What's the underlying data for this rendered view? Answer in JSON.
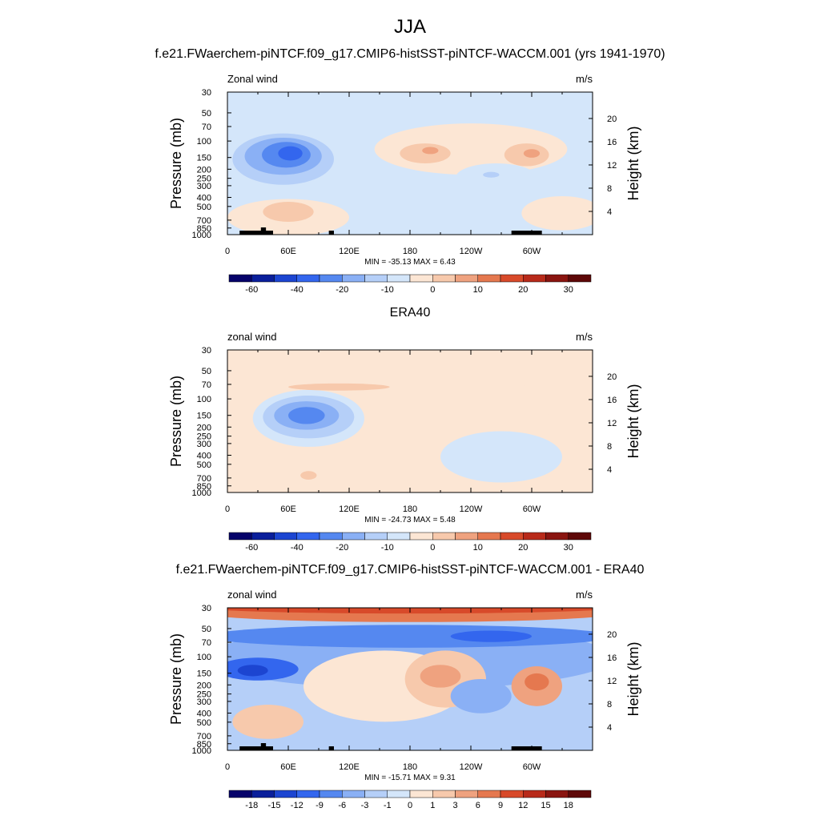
{
  "page": {
    "title": "JJA"
  },
  "chart_data": [
    {
      "type": "heatmap",
      "title": "f.e21.FWaerchem-piNTCF.f09_g17.CMIP6-histSST-piNTCF-WACCM.001 (yrs 1941-1970)",
      "left_label": "Zonal wind",
      "right_label": "m/s",
      "xlabel": "",
      "ylabel": "Pressure (mb)",
      "ylabel_right": "Height (km)",
      "x_ticks": [
        "0",
        "60E",
        "120E",
        "180",
        "120W",
        "60W"
      ],
      "y_ticks": [
        "30",
        "50",
        "70",
        "100",
        "150",
        "200",
        "250",
        "300",
        "400",
        "500",
        "700",
        "850",
        "1000"
      ],
      "y_right_ticks": [
        "20",
        "16",
        "12",
        "8",
        "4"
      ],
      "stats": "MIN = -35.13  MAX =   6.43",
      "min": -35.13,
      "max": 6.43,
      "colorbar_labels": [
        "-60",
        "-40",
        "-20",
        "-10",
        "0",
        "10",
        "20",
        "30"
      ],
      "colorbar_colors": [
        "#06036a",
        "#0a1f9b",
        "#1c45d1",
        "#3366ee",
        "#5588f0",
        "#8ab0f5",
        "#b5cff8",
        "#d4e6fa",
        "#fce6d4",
        "#f7c9ac",
        "#efa27f",
        "#e5784f",
        "#d84a2a",
        "#b82a1a",
        "#8a1510",
        "#5e0808"
      ],
      "features": [
        {
          "lon": 55,
          "p": 155,
          "value": -35,
          "note": "subtropical easterly jet core"
        },
        {
          "lon": 205,
          "p": 150,
          "value": 6,
          "note": "westerly maximum"
        },
        {
          "lon": 285,
          "p": 150,
          "value": 6,
          "note": "westerly maximum"
        }
      ]
    },
    {
      "type": "heatmap",
      "title": "ERA40",
      "left_label": "zonal wind",
      "right_label": "m/s",
      "xlabel": "",
      "ylabel": "Pressure (mb)",
      "ylabel_right": "Height (km)",
      "x_ticks": [
        "0",
        "60E",
        "120E",
        "180",
        "120W",
        "60W"
      ],
      "y_ticks": [
        "30",
        "50",
        "70",
        "100",
        "150",
        "200",
        "250",
        "300",
        "400",
        "500",
        "700",
        "850",
        "1000"
      ],
      "y_right_ticks": [
        "20",
        "16",
        "12",
        "8",
        "4"
      ],
      "stats": "MIN = -24.73  MAX =   5.48",
      "min": -24.73,
      "max": 5.48,
      "colorbar_labels": [
        "-60",
        "-40",
        "-20",
        "-10",
        "0",
        "10",
        "20",
        "30"
      ],
      "colorbar_colors": [
        "#06036a",
        "#0a1f9b",
        "#1c45d1",
        "#3366ee",
        "#5588f0",
        "#8ab0f5",
        "#b5cff8",
        "#d4e6fa",
        "#fce6d4",
        "#f7c9ac",
        "#efa27f",
        "#e5784f",
        "#d84a2a",
        "#b82a1a",
        "#8a1510",
        "#5e0808"
      ],
      "features": [
        {
          "lon": 80,
          "p": 150,
          "value": -25,
          "note": "subtropical easterly jet core"
        },
        {
          "lon": 240,
          "p": 130,
          "value": 5,
          "note": "broad westerly region"
        }
      ]
    },
    {
      "type": "heatmap",
      "title": "f.e21.FWaerchem-piNTCF.f09_g17.CMIP6-histSST-piNTCF-WACCM.001 - ERA40",
      "left_label": "zonal wind",
      "right_label": "m/s",
      "xlabel": "",
      "ylabel": "Pressure (mb)",
      "ylabel_right": "Height (km)",
      "x_ticks": [
        "0",
        "60E",
        "120E",
        "180",
        "120W",
        "60W"
      ],
      "y_ticks": [
        "30",
        "50",
        "70",
        "100",
        "150",
        "200",
        "250",
        "300",
        "400",
        "500",
        "700",
        "850",
        "1000"
      ],
      "y_right_ticks": [
        "20",
        "16",
        "12",
        "8",
        "4"
      ],
      "stats": "MIN = -15.71  MAX =   9.31",
      "min": -15.71,
      "max": 9.31,
      "colorbar_labels": [
        "-18",
        "-15",
        "-12",
        "-9",
        "-6",
        "-3",
        "-1",
        "0",
        "1",
        "3",
        "6",
        "9",
        "12",
        "15",
        "18"
      ],
      "colorbar_colors": [
        "#06036a",
        "#0a1f9b",
        "#1c45d1",
        "#3366ee",
        "#5588f0",
        "#8ab0f5",
        "#b5cff8",
        "#d4e6fa",
        "#fce6d4",
        "#f7c9ac",
        "#efa27f",
        "#e5784f",
        "#d84a2a",
        "#b82a1a",
        "#8a1510",
        "#5e0808"
      ],
      "features": [
        {
          "lon": 25,
          "p": 160,
          "value": -15,
          "note": "negative difference core"
        },
        {
          "lon": 260,
          "p": 80,
          "value": -10,
          "note": "negative difference band"
        },
        {
          "lon": 200,
          "p": 180,
          "value": 9,
          "note": "positive difference"
        },
        {
          "lon": 305,
          "p": 200,
          "value": 9,
          "note": "positive difference"
        },
        {
          "lon": 180,
          "p": 32,
          "value": 9,
          "note": "positive band at top"
        }
      ]
    }
  ]
}
